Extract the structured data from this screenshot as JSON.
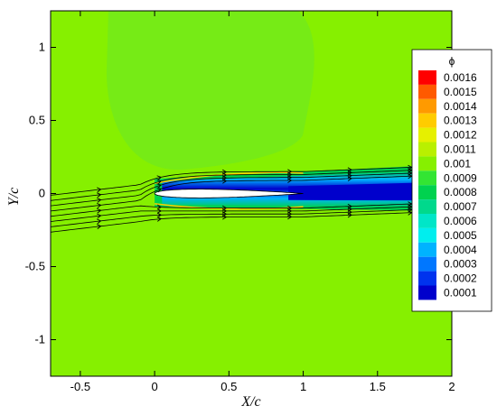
{
  "chart_data": {
    "type": "heatmap",
    "title": "",
    "xlabel": "X/c",
    "ylabel": "Y/c",
    "xlim": [
      -0.7,
      2.0
    ],
    "ylim": [
      -1.25,
      1.25
    ],
    "x_ticks": [
      "-0.5",
      "0",
      "0.5",
      "1",
      "1.5",
      "2"
    ],
    "x_tick_values": [
      -0.5,
      0,
      0.5,
      1,
      1.5,
      2
    ],
    "y_ticks": [
      "1",
      "0.5",
      "0",
      "-0.5",
      "-1"
    ],
    "y_tick_values": [
      1,
      0.5,
      0,
      -0.5,
      -1
    ],
    "legend": {
      "title": "ϕ",
      "placement": "right",
      "levels": [
        "0.0016",
        "0.0015",
        "0.0014",
        "0.0013",
        "0.0012",
        "0.0011",
        "0.001",
        "0.0009",
        "0.0008",
        "0.0007",
        "0.0006",
        "0.0005",
        "0.0004",
        "0.0003",
        "0.0002",
        "0.0001"
      ],
      "level_values": [
        0.0016,
        0.0015,
        0.0014,
        0.0013,
        0.0012,
        0.0011,
        0.001,
        0.0009,
        0.0008,
        0.0007,
        0.0006,
        0.0005,
        0.0004,
        0.0003,
        0.0002,
        0.0001
      ],
      "colors": [
        "#ff0000",
        "#ff5a00",
        "#ff9a00",
        "#ffcc00",
        "#e6f000",
        "#b9f000",
        "#86f000",
        "#33e533",
        "#00d24f",
        "#00d98c",
        "#00e6c8",
        "#00eeee",
        "#00b3ff",
        "#0077ff",
        "#0033ee",
        "#0000cc"
      ]
    },
    "background_value": 0.001,
    "airfoil": {
      "leading_edge_x": 0.0,
      "trailing_edge_x": 1.0,
      "max_thickness": 0.06
    },
    "wake_region": {
      "x_start": 0.9,
      "x_end": 2.0,
      "min_value": 0.0001
    },
    "streamlines": {
      "count": 8,
      "y_offsets": [
        -0.16,
        -0.12,
        -0.08,
        -0.04,
        0.0,
        0.04,
        0.08,
        0.12
      ]
    }
  }
}
